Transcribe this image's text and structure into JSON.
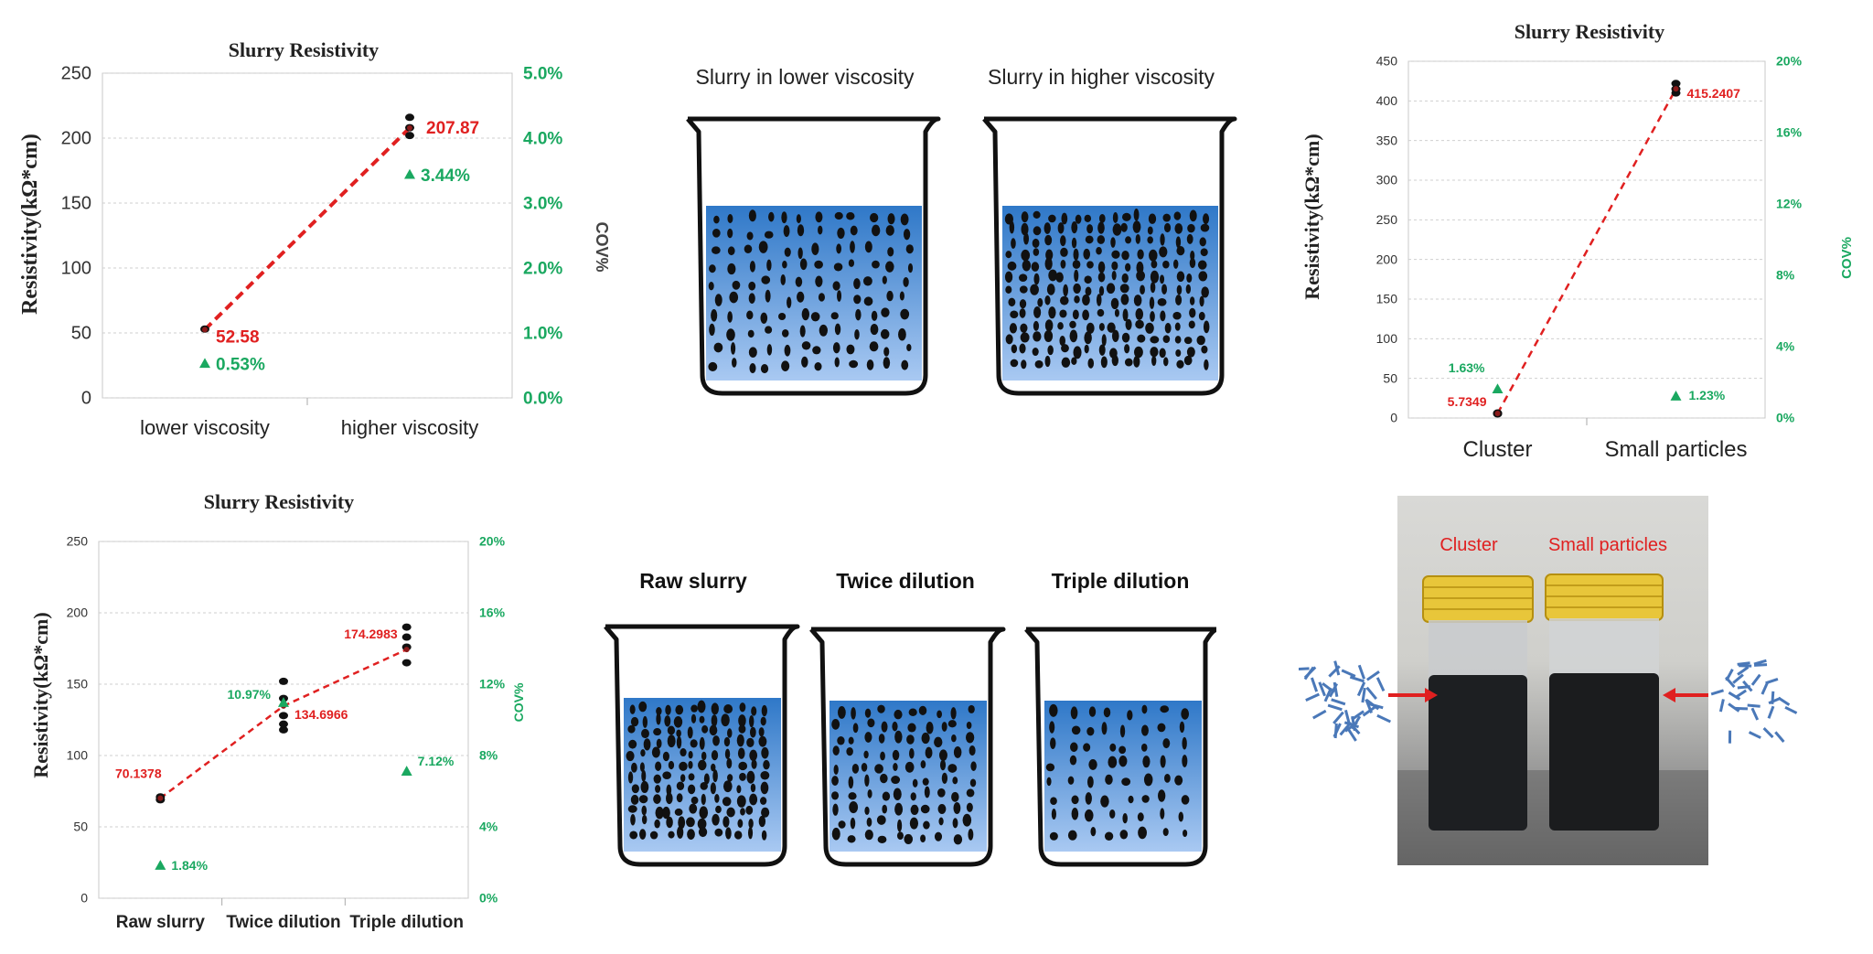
{
  "chart_data": [
    {
      "type": "scatter",
      "title": "Slurry Resistivity",
      "ylabel": "Resistivity(kΩ*cm)",
      "y2label": "COV%",
      "categories": [
        "lower viscosity",
        "higher viscosity"
      ],
      "ylim": [
        0,
        250
      ],
      "yticks": [
        "0",
        "50",
        "100",
        "150",
        "200",
        "250"
      ],
      "y2lim": [
        0,
        5
      ],
      "y2ticks": [
        "0.0%",
        "1.0%",
        "2.0%",
        "3.0%",
        "4.0%",
        "5.0%"
      ],
      "points": [
        [
          0,
          53
        ],
        [
          1,
          202
        ],
        [
          1,
          208
        ],
        [
          1,
          216
        ]
      ],
      "mean_values": [
        52.58,
        207.87
      ],
      "mean_labels": [
        "52.58",
        "207.87"
      ],
      "cov_values": [
        0.53,
        3.44
      ],
      "cov_labels": [
        "0.53%",
        "3.44%"
      ],
      "colors": {
        "mean": "#e02020",
        "cov": "#1aa860",
        "points": "#111111"
      }
    },
    {
      "type": "scatter",
      "title": "Slurry Resistivity",
      "ylabel": "Resistivity(kΩ*cm)",
      "y2label": "COV%",
      "categories": [
        "Cluster",
        "Small particles"
      ],
      "ylim": [
        0,
        450
      ],
      "yticks": [
        "0",
        "50",
        "100",
        "150",
        "200",
        "250",
        "300",
        "350",
        "400",
        "450"
      ],
      "y2lim": [
        0,
        20
      ],
      "y2ticks": [
        "0%",
        "4%",
        "8%",
        "12%",
        "16%",
        "20%"
      ],
      "points": [
        [
          0,
          5.2
        ],
        [
          0,
          5.7
        ],
        [
          0,
          6.3
        ],
        [
          1,
          410
        ],
        [
          1,
          415
        ],
        [
          1,
          422
        ]
      ],
      "mean_values": [
        5.7349,
        415.2407
      ],
      "mean_labels": [
        "5.7349",
        "415.2407"
      ],
      "cov_values": [
        1.63,
        1.23
      ],
      "cov_labels": [
        "1.63%",
        "1.23%"
      ],
      "colors": {
        "mean": "#e02020",
        "cov": "#1aa860",
        "points": "#111111"
      }
    },
    {
      "type": "scatter",
      "title": "Slurry Resistivity",
      "ylabel": "Resistivity(kΩ*cm)",
      "y2label": "COV%",
      "categories": [
        "Raw slurry",
        "Twice dilution",
        "Triple dilution"
      ],
      "ylim": [
        0,
        250
      ],
      "yticks": [
        "0",
        "50",
        "100",
        "150",
        "200",
        "250"
      ],
      "y2lim": [
        0,
        20
      ],
      "y2ticks": [
        "0%",
        "4%",
        "8%",
        "12%",
        "16%",
        "20%"
      ],
      "points": [
        [
          0,
          69
        ],
        [
          0,
          71
        ],
        [
          1,
          118
        ],
        [
          1,
          122
        ],
        [
          1,
          128
        ],
        [
          1,
          140
        ],
        [
          1,
          152
        ],
        [
          2,
          165
        ],
        [
          2,
          176
        ],
        [
          2,
          183
        ],
        [
          2,
          190
        ]
      ],
      "mean_values": [
        70.1378,
        134.6966,
        174.2983
      ],
      "mean_labels": [
        "70.1378",
        "134.6966",
        "174.2983"
      ],
      "cov_values": [
        1.84,
        10.97,
        7.12
      ],
      "cov_labels": [
        "1.84%",
        "10.97%",
        "7.12%"
      ],
      "colors": {
        "mean": "#e02020",
        "cov": "#1aa860",
        "points": "#111111"
      }
    }
  ],
  "beakers_top": {
    "captions": [
      "Slurry in lower viscosity",
      "Slurry in higher viscosity"
    ],
    "particle_levels": [
      "lower",
      "higher"
    ]
  },
  "beakers_bottom": {
    "captions": [
      "Raw slurry",
      "Twice dilution",
      "Triple dilution"
    ]
  },
  "photo": {
    "labels": [
      "Cluster",
      "Small particles"
    ],
    "label_color": "#e02020"
  },
  "colors": {
    "liquid_top": "#2f78c8",
    "liquid_bottom": "#a9c9f2",
    "grid": "#cfcfcf"
  }
}
